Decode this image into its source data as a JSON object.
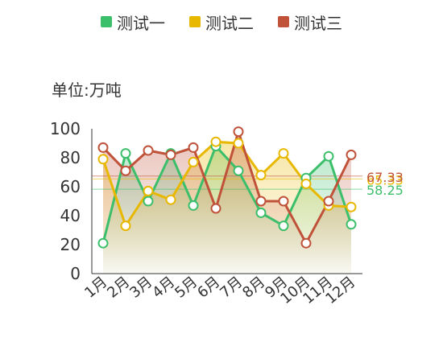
{
  "legend": [
    {
      "name": "测试一",
      "color": "#3cbf6b"
    },
    {
      "name": "测试二",
      "color": "#e8b800"
    },
    {
      "name": "测试三",
      "color": "#c0523a"
    }
  ],
  "unit_label": "单位:万吨",
  "chart_data": {
    "type": "line",
    "categories": [
      "1月",
      "2月",
      "3月",
      "4月",
      "5月",
      "6月",
      "7月",
      "8月",
      "9月",
      "10月",
      "11月",
      "12月"
    ],
    "ylim": [
      0,
      100
    ],
    "yticks": [
      0,
      20,
      40,
      60,
      80,
      100
    ],
    "series": [
      {
        "name": "测试一",
        "color": "#3cbf6b",
        "values": [
          21,
          83,
          50,
          83,
          47,
          88,
          71,
          42,
          33,
          66,
          81,
          34
        ],
        "average": 58.25,
        "average_label": "58.25"
      },
      {
        "name": "测试二",
        "color": "#e8b800",
        "values": [
          79,
          33,
          57,
          51,
          77,
          91,
          90,
          68,
          83,
          62,
          47,
          46
        ],
        "average": 65.33,
        "average_label": "65.33"
      },
      {
        "name": "测试三",
        "color": "#c0523a",
        "values": [
          87,
          71,
          85,
          82,
          87,
          45,
          98,
          50,
          50,
          21,
          50,
          82
        ],
        "average": 67.33,
        "average_label": "67.33"
      }
    ]
  }
}
